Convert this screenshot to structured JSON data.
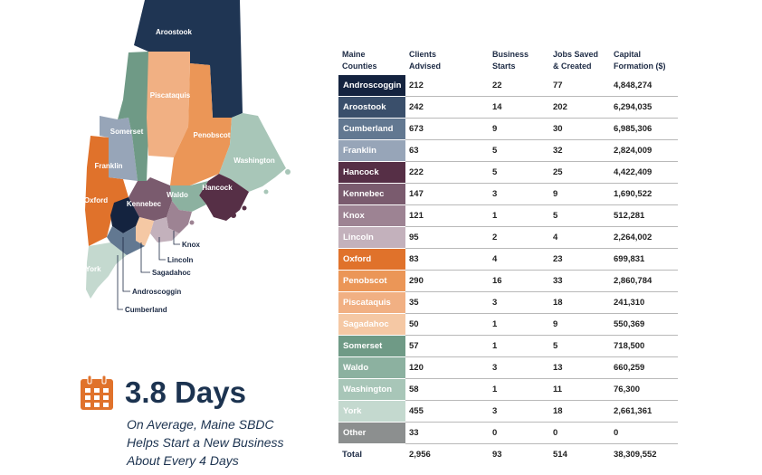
{
  "map": {
    "labels": {
      "aroostook": "Aroostook",
      "piscataquis": "Piscataquis",
      "somerset": "Somerset",
      "penobscot": "Penobscot",
      "washington": "Washington",
      "franklin": "Franklin",
      "oxford": "Oxford",
      "kennebec": "Kennebec",
      "waldo": "Waldo",
      "hancock": "Hancock",
      "knox": "Knox",
      "lincoln": "Lincoln",
      "sagadahoc": "Sagadahoc",
      "androscoggin": "Androscoggin",
      "york": "York",
      "cumberland": "Cumberland"
    }
  },
  "stat": {
    "icon": "calendar-icon",
    "value": "3.8 Days",
    "caption_lines": [
      "On Average, Maine SBDC",
      "Helps Start a New Business",
      "About Every 4 Days"
    ]
  },
  "table": {
    "headers": [
      [
        "Maine",
        "Counties"
      ],
      [
        "Clients",
        "Advised"
      ],
      [
        "Business",
        "Starts"
      ],
      [
        "Jobs Saved",
        "& Created"
      ],
      [
        "Capital",
        "Formation ($)"
      ]
    ],
    "rows": [
      {
        "county": "Androscoggin",
        "color": "#14233f",
        "clients": "212",
        "starts": "22",
        "jobs": "77",
        "capital": "4,848,274"
      },
      {
        "county": "Aroostook",
        "color": "#3a4f6b",
        "clients": "242",
        "starts": "14",
        "jobs": "202",
        "capital": "6,294,035"
      },
      {
        "county": "Cumberland",
        "color": "#627891",
        "clients": "673",
        "starts": "9",
        "jobs": "30",
        "capital": "6,985,306"
      },
      {
        "county": "Franklin",
        "color": "#97a5b8",
        "clients": "63",
        "starts": "5",
        "jobs": "32",
        "capital": "2,824,009"
      },
      {
        "county": "Hancock",
        "color": "#562f46",
        "clients": "222",
        "starts": "5",
        "jobs": "25",
        "capital": "4,422,409"
      },
      {
        "county": "Kennebec",
        "color": "#7a5b6e",
        "clients": "147",
        "starts": "3",
        "jobs": "9",
        "capital": "1,690,522"
      },
      {
        "county": "Knox",
        "color": "#9d8393",
        "clients": "121",
        "starts": "1",
        "jobs": "5",
        "capital": "512,281"
      },
      {
        "county": "Lincoln",
        "color": "#c3b1bc",
        "clients": "95",
        "starts": "2",
        "jobs": "4",
        "capital": "2,264,002"
      },
      {
        "county": "Oxford",
        "color": "#e0722b",
        "clients": "83",
        "starts": "4",
        "jobs": "23",
        "capital": "699,831"
      },
      {
        "county": "Penobscot",
        "color": "#eb9657",
        "clients": "290",
        "starts": "16",
        "jobs": "33",
        "capital": "2,860,784"
      },
      {
        "county": "Piscataquis",
        "color": "#f1b083",
        "clients": "35",
        "starts": "3",
        "jobs": "18",
        "capital": "241,310"
      },
      {
        "county": "Sagadahoc",
        "color": "#f5c8a4",
        "clients": "50",
        "starts": "1",
        "jobs": "9",
        "capital": "550,369"
      },
      {
        "county": "Somerset",
        "color": "#6f9a86",
        "clients": "57",
        "starts": "1",
        "jobs": "5",
        "capital": "718,500"
      },
      {
        "county": "Waldo",
        "color": "#8cb1a0",
        "clients": "120",
        "starts": "3",
        "jobs": "13",
        "capital": "660,259"
      },
      {
        "county": "Washington",
        "color": "#a8c6b8",
        "clients": "58",
        "starts": "1",
        "jobs": "11",
        "capital": "76,300"
      },
      {
        "county": "York",
        "color": "#c4d9cf",
        "clients": "455",
        "starts": "3",
        "jobs": "18",
        "capital": "2,661,361"
      },
      {
        "county": "Other",
        "color": "#8c8f8f",
        "clients": "33",
        "starts": "0",
        "jobs": "0",
        "capital": "0"
      }
    ],
    "total": {
      "label": "Total",
      "clients": "2,956",
      "starts": "93",
      "jobs": "514",
      "capital": "38,309,552"
    }
  }
}
